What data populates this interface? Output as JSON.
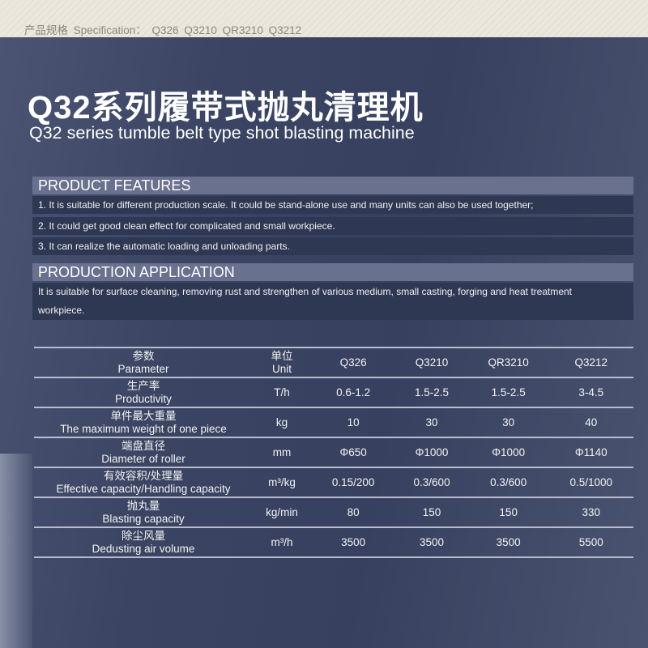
{
  "spec_line": "产品规格 Specification： Q326  Q3210  QR3210  Q3212",
  "title_cn": "Q32系列履带式抛丸清理机",
  "title_en": "Q32 series tumble belt type shot blasting machine",
  "features": {
    "heading": "PRODUCT FEATURES",
    "items": [
      "1. It is suitable for different production scale. It could be stand-alone use and many units can also be used together;",
      "2. It could get good clean effect for complicated and small workpiece.",
      "3. It can realize the automatic loading and unloading parts."
    ]
  },
  "application": {
    "heading": "PRODUCTION APPLICATION",
    "text": "It is suitable for surface cleaning, removing rust and strengthen of various medium, small casting, forging and heat treatment workpiece."
  },
  "table": {
    "header": {
      "param_cn": "参数",
      "param_en": "Parameter",
      "unit_cn": "单位",
      "unit_en": "Unit",
      "models": [
        "Q326",
        "Q3210",
        "QR3210",
        "Q3212"
      ]
    },
    "rows": [
      {
        "cn": "生产率",
        "en": "Productivity",
        "unit": "T/h",
        "values": [
          "0.6-1.2",
          "1.5-2.5",
          "1.5-2.5",
          "3-4.5"
        ]
      },
      {
        "cn": "单件最大重量",
        "en": "The maximum weight of one piece",
        "unit": "kg",
        "values": [
          "10",
          "30",
          "30",
          "40"
        ]
      },
      {
        "cn": "端盘直径",
        "en": "Diameter of roller",
        "unit": "mm",
        "values": [
          "Φ650",
          "Φ1000",
          "Φ1000",
          "Φ1140"
        ]
      },
      {
        "cn": "有效容积/处理量",
        "en": "Effective capacity/Handling capacity",
        "unit": "m³/kg",
        "values": [
          "0.15/200",
          "0.3/600",
          "0.3/600",
          "0.5/1000"
        ]
      },
      {
        "cn": "抛丸量",
        "en": "Blasting capacity",
        "unit": "kg/min",
        "values": [
          "80",
          "150",
          "150",
          "330"
        ]
      },
      {
        "cn": "除尘风量",
        "en": "Dedusting air volume",
        "unit": "m³/h",
        "values": [
          "3500",
          "3500",
          "3500",
          "5500"
        ]
      }
    ]
  }
}
